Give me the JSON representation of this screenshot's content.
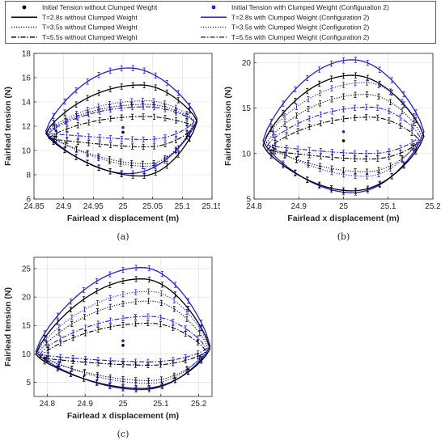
{
  "legend": {
    "entries": [
      {
        "label": "Initial Tension without Clumped Weight",
        "style": "marker",
        "color": "#000000"
      },
      {
        "label": "Initial Tension with Clumped Weight (Configuration 2)",
        "style": "marker",
        "color": "#1f1fd6"
      },
      {
        "label": "T=2.8s without Clumped Weight",
        "style": "solid",
        "color": "#000000"
      },
      {
        "label": "T=2.8s with Clumped Weight (Configuration 2)",
        "style": "solid",
        "color": "#1f1fd6"
      },
      {
        "label": "T=3.5s without Clumped Weight",
        "style": "dotted",
        "color": "#000000"
      },
      {
        "label": "T=3.5s with Clumped Weight (Configuration 2)",
        "style": "dotted",
        "color": "#1f1fd6"
      },
      {
        "label": "T=5.5s without Clumped Weight",
        "style": "dashdot",
        "color": "#000000"
      },
      {
        "label": "T=5.5s with Clumped Weight (Configuration 2)",
        "style": "dashdot",
        "color": "#1f1fd6"
      }
    ]
  },
  "chart_data": [
    {
      "id": "a",
      "panel_label": "(a)",
      "type": "line",
      "xlabel": "Fairlead x displacement (m)",
      "ylabel": "Fairlead tension (N)",
      "xlim": [
        24.85,
        25.15
      ],
      "ylim": [
        6,
        18
      ],
      "xticks": [
        24.85,
        24.9,
        24.95,
        25,
        25.05,
        25.1,
        25.15
      ],
      "xtick_labels": [
        "24.85",
        "24.9",
        "24.95",
        "25",
        "25.05",
        "25.1",
        "25.15"
      ],
      "yticks": [
        6,
        8,
        10,
        12,
        14,
        16,
        18
      ],
      "ytick_labels": [
        "6",
        "8",
        "10",
        "12",
        "14",
        "16",
        "18"
      ],
      "grid": true,
      "initial_points": [
        {
          "x": 25.0,
          "y": 11.5,
          "color": "#000000"
        },
        {
          "x": 25.0,
          "y": 11.9,
          "color": "#1f1fd6"
        }
      ],
      "series": [
        {
          "color": "#1f1fd6",
          "style": "solid",
          "xmin": 24.87,
          "xmax": 25.125,
          "xpeak": 25.01,
          "top": 16.8,
          "bottom": 8.1,
          "mid": 12.2
        },
        {
          "color": "#000000",
          "style": "solid",
          "xmin": 24.87,
          "xmax": 25.125,
          "xpeak": 25.03,
          "top": 15.4,
          "bottom": 7.9,
          "mid": 12.0
        },
        {
          "color": "#1f1fd6",
          "style": "dotted",
          "xmin": 24.872,
          "xmax": 25.12,
          "xpeak": 25.04,
          "top": 14.1,
          "bottom": 8.7,
          "mid": 12.1
        },
        {
          "color": "#000000",
          "style": "dotted",
          "xmin": 24.872,
          "xmax": 25.12,
          "xpeak": 25.04,
          "top": 13.8,
          "bottom": 8.9,
          "mid": 12.0
        },
        {
          "color": "#1f1fd6",
          "style": "dashdot",
          "xmin": 24.875,
          "xmax": 25.12,
          "xpeak": 25.04,
          "top": 13.6,
          "bottom": 10.9,
          "mid": 12.0
        },
        {
          "color": "#000000",
          "style": "dashdot",
          "xmin": 24.875,
          "xmax": 25.12,
          "xpeak": 25.04,
          "top": 12.8,
          "bottom": 10.3,
          "mid": 11.6
        }
      ]
    },
    {
      "id": "b",
      "panel_label": "(b)",
      "type": "line",
      "xlabel": "Fairlead x displacement (m)",
      "ylabel": "Fairlead tension (N)",
      "xlim": [
        24.8,
        25.2
      ],
      "ylim": [
        5,
        21
      ],
      "xticks": [
        24.8,
        24.9,
        25,
        25.1,
        25.2
      ],
      "xtick_labels": [
        "24.8",
        "24.9",
        "25",
        "25.1",
        "25.2"
      ],
      "yticks": [
        5,
        10,
        15,
        20
      ],
      "ytick_labels": [
        "5",
        "10",
        "15",
        "20"
      ],
      "grid": true,
      "initial_points": [
        {
          "x": 25.0,
          "y": 11.4,
          "color": "#000000"
        },
        {
          "x": 25.0,
          "y": 12.4,
          "color": "#1f1fd6"
        }
      ],
      "series": [
        {
          "color": "#1f1fd6",
          "style": "solid",
          "xmin": 24.82,
          "xmax": 25.18,
          "xpeak": 25.02,
          "top": 20.3,
          "bottom": 5.7,
          "mid": 12.0
        },
        {
          "color": "#000000",
          "style": "solid",
          "xmin": 24.82,
          "xmax": 25.18,
          "xpeak": 25.02,
          "top": 18.6,
          "bottom": 5.9,
          "mid": 11.5
        },
        {
          "color": "#1f1fd6",
          "style": "dotted",
          "xmin": 24.825,
          "xmax": 25.175,
          "xpeak": 25.05,
          "top": 17.8,
          "bottom": 7.5,
          "mid": 12.0
        },
        {
          "color": "#000000",
          "style": "dotted",
          "xmin": 24.825,
          "xmax": 25.175,
          "xpeak": 25.05,
          "top": 16.5,
          "bottom": 8.0,
          "mid": 11.5
        },
        {
          "color": "#1f1fd6",
          "style": "dashdot",
          "xmin": 24.83,
          "xmax": 25.17,
          "xpeak": 25.06,
          "top": 15.1,
          "bottom": 10.0,
          "mid": 11.5
        },
        {
          "color": "#000000",
          "style": "dashdot",
          "xmin": 24.83,
          "xmax": 25.17,
          "xpeak": 25.06,
          "top": 14.0,
          "bottom": 9.4,
          "mid": 11.0
        }
      ]
    },
    {
      "id": "c",
      "panel_label": "(c)",
      "type": "line",
      "xlabel": "Fairlead x displacement (m)",
      "ylabel": "Fairlead tension (N)",
      "xlim": [
        24.765,
        25.235
      ],
      "ylim": [
        2.5,
        27
      ],
      "xticks": [
        24.8,
        24.9,
        25,
        25.1,
        25.2
      ],
      "xtick_labels": [
        "24.8",
        "24.9",
        "25",
        "25.1",
        "25.2"
      ],
      "yticks": [
        5,
        10,
        15,
        20,
        25
      ],
      "ytick_labels": [
        "5",
        "10",
        "15",
        "20",
        "25"
      ],
      "grid": true,
      "initial_points": [
        {
          "x": 25.0,
          "y": 11.5,
          "color": "#000000"
        },
        {
          "x": 25.0,
          "y": 12.3,
          "color": "#1f1fd6"
        }
      ],
      "series": [
        {
          "color": "#1f1fd6",
          "style": "solid",
          "xmin": 24.77,
          "xmax": 25.23,
          "xpeak": 25.05,
          "top": 25.2,
          "bottom": 3.7,
          "mid": 11.0
        },
        {
          "color": "#000000",
          "style": "solid",
          "xmin": 24.77,
          "xmax": 25.23,
          "xpeak": 25.05,
          "top": 23.2,
          "bottom": 3.9,
          "mid": 10.5
        },
        {
          "color": "#1f1fd6",
          "style": "dotted",
          "xmin": 24.775,
          "xmax": 25.225,
          "xpeak": 25.07,
          "top": 21.0,
          "bottom": 4.8,
          "mid": 11.0
        },
        {
          "color": "#000000",
          "style": "dotted",
          "xmin": 24.775,
          "xmax": 25.225,
          "xpeak": 25.07,
          "top": 19.3,
          "bottom": 5.3,
          "mid": 10.5
        },
        {
          "color": "#1f1fd6",
          "style": "dashdot",
          "xmin": 24.78,
          "xmax": 25.22,
          "xpeak": 25.07,
          "top": 16.6,
          "bottom": 8.6,
          "mid": 10.5
        },
        {
          "color": "#000000",
          "style": "dashdot",
          "xmin": 24.78,
          "xmax": 25.22,
          "xpeak": 25.07,
          "top": 15.4,
          "bottom": 8.0,
          "mid": 10.0
        }
      ]
    }
  ]
}
